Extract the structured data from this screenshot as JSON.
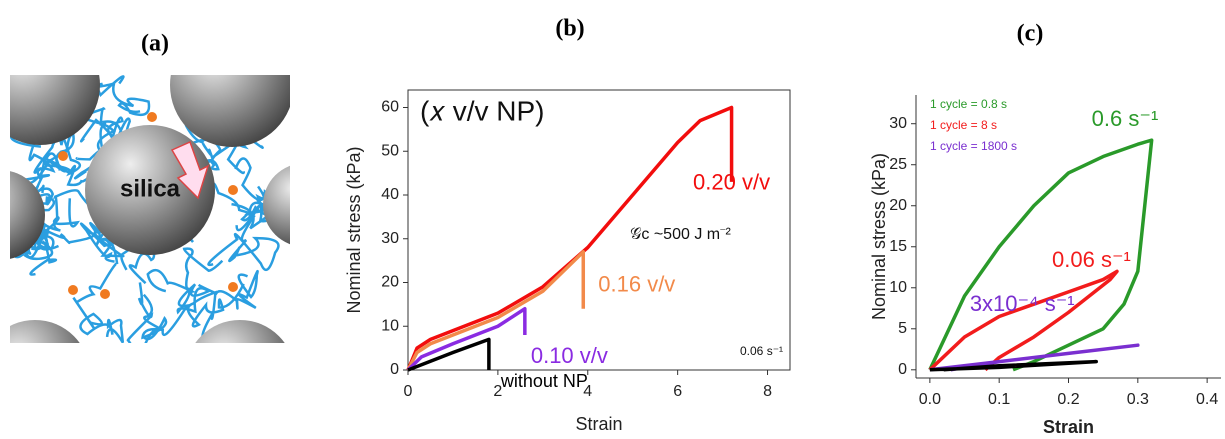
{
  "panels": [
    "(a)",
    "(b)",
    "(c)"
  ],
  "diagram": {
    "label": "silica"
  },
  "chart_data": [
    {
      "type": "line",
      "x_label": "Strain",
      "y_label": "Nominal stress (kPa)",
      "annotations": [
        "(𝑥 v/v NP)",
        "𝒢c ~500 J m⁻²",
        "0.06 s⁻¹"
      ],
      "xlim": [
        0,
        8.5
      ],
      "ylim": [
        0,
        64
      ],
      "xticks": [
        0,
        2,
        4,
        6,
        8
      ],
      "yticks": [
        0,
        10,
        20,
        30,
        40,
        50,
        60
      ],
      "box": true,
      "series": [
        {
          "name": "0.20 v/v",
          "color": "#f20d0d",
          "x": [
            0,
            0.2,
            0.5,
            1,
            2,
            3,
            4,
            5,
            6,
            6.5,
            7.2,
            7.2
          ],
          "values": [
            0,
            5,
            7,
            9,
            13,
            19,
            28,
            40,
            52,
            57,
            60,
            43
          ]
        },
        {
          "name": "0.16 v/v",
          "color": "#f28a4a",
          "x": [
            0,
            0.2,
            0.5,
            1,
            2,
            3,
            3.9,
            3.9
          ],
          "values": [
            0,
            4,
            6,
            8,
            12,
            18,
            27,
            14
          ]
        },
        {
          "name": "0.10 v/v",
          "color": "#8a2be2",
          "x": [
            0,
            0.3,
            1,
            2,
            2.6,
            2.6
          ],
          "values": [
            0,
            3,
            6,
            10,
            14,
            8
          ]
        },
        {
          "name": "without NP",
          "color": "#000000",
          "x": [
            0,
            0.5,
            1,
            1.8,
            1.8
          ],
          "values": [
            0,
            2,
            4,
            7,
            0
          ]
        }
      ]
    },
    {
      "type": "line",
      "x_label": "Strain",
      "y_label": "Nominal stress (kPa)",
      "xlim": [
        -0.02,
        0.42
      ],
      "ylim": [
        -1,
        33.5
      ],
      "xticks": [
        {
          "value": 0,
          "label": "0.0"
        },
        0.1,
        0.2,
        0.3,
        0.4
      ],
      "yticks": [
        0,
        5,
        10,
        15,
        20,
        25,
        30
      ],
      "box": false,
      "series": [
        {
          "name": "0.6 s⁻¹",
          "cycle": "1 cycle = 0.8 s",
          "color": "#2a9a2a",
          "x": [
            0,
            0.05,
            0.1,
            0.15,
            0.2,
            0.25,
            0.3,
            0.32,
            0.31,
            0.3,
            0.28,
            0.25,
            0.2,
            0.15,
            0.12
          ],
          "values": [
            0,
            9,
            15,
            20,
            24,
            26,
            27.5,
            28,
            20,
            12,
            8,
            5,
            3,
            1,
            0
          ]
        },
        {
          "name": "0.06 s⁻¹",
          "cycle": "1 cycle = 8 s",
          "color": "#f21c1c",
          "x": [
            0,
            0.05,
            0.1,
            0.15,
            0.2,
            0.25,
            0.27,
            0.26,
            0.2,
            0.15,
            0.1,
            0.08
          ],
          "values": [
            0,
            4,
            6.5,
            8,
            9.5,
            11,
            12,
            11,
            7,
            4,
            1.5,
            0
          ]
        },
        {
          "name": "3x10⁻⁴ s⁻¹",
          "cycle": "1 cycle = 1800 s",
          "color": "#7a2fd0",
          "x": [
            0,
            0.1,
            0.2,
            0.3,
            0.2,
            0.1,
            0.03
          ],
          "values": [
            0,
            1,
            2,
            3,
            2,
            1,
            0
          ]
        },
        {
          "color": "#000000",
          "x": [
            0,
            0.1,
            0.24,
            0.1,
            0.02
          ],
          "values": [
            0,
            0.3,
            1,
            0.5,
            0
          ]
        }
      ]
    }
  ]
}
